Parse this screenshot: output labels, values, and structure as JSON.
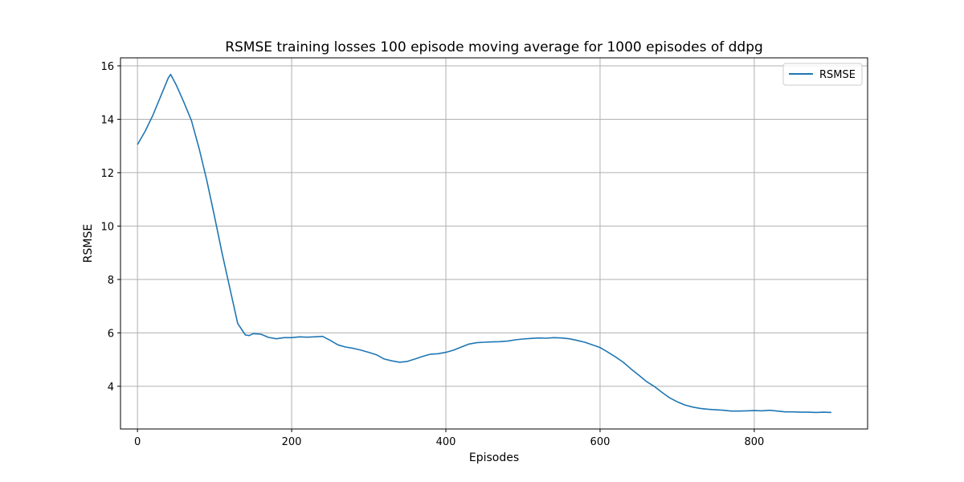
{
  "chart_data": {
    "type": "line",
    "title": "RSMSE training losses 100 episode moving average for 1000 episodes of ddpg",
    "xlabel": "Episodes",
    "ylabel": "RSMSE",
    "xlim": [
      -22,
      947
    ],
    "ylim": [
      2.4,
      16.3
    ],
    "xticks": [
      0,
      200,
      400,
      600,
      800
    ],
    "yticks": [
      4,
      6,
      8,
      10,
      12,
      14,
      16
    ],
    "grid": true,
    "legend_position": "top-right",
    "series": [
      {
        "name": "RSMSE",
        "color": "#1f77b4",
        "x": [
          0,
          10,
          20,
          30,
          40,
          43,
          50,
          60,
          70,
          80,
          90,
          100,
          110,
          120,
          130,
          140,
          145,
          150,
          160,
          170,
          180,
          190,
          200,
          210,
          220,
          230,
          240,
          250,
          260,
          270,
          280,
          290,
          300,
          310,
          320,
          330,
          340,
          350,
          360,
          370,
          380,
          390,
          400,
          410,
          420,
          430,
          440,
          450,
          460,
          470,
          480,
          490,
          500,
          510,
          520,
          530,
          540,
          550,
          560,
          570,
          580,
          590,
          600,
          610,
          620,
          630,
          640,
          650,
          660,
          670,
          680,
          690,
          700,
          710,
          720,
          730,
          740,
          750,
          760,
          770,
          780,
          790,
          800,
          810,
          820,
          830,
          840,
          850,
          860,
          870,
          880,
          890,
          900
        ],
        "y": [
          13.05,
          13.55,
          14.15,
          14.85,
          15.55,
          15.68,
          15.3,
          14.65,
          13.95,
          12.9,
          11.7,
          10.35,
          8.95,
          7.65,
          6.35,
          5.92,
          5.9,
          5.97,
          5.95,
          5.83,
          5.78,
          5.82,
          5.82,
          5.85,
          5.84,
          5.85,
          5.87,
          5.72,
          5.55,
          5.47,
          5.42,
          5.35,
          5.27,
          5.18,
          5.02,
          4.95,
          4.9,
          4.93,
          5.02,
          5.12,
          5.2,
          5.22,
          5.27,
          5.35,
          5.47,
          5.58,
          5.63,
          5.65,
          5.66,
          5.67,
          5.69,
          5.74,
          5.77,
          5.79,
          5.81,
          5.8,
          5.82,
          5.81,
          5.78,
          5.72,
          5.65,
          5.55,
          5.45,
          5.28,
          5.1,
          4.9,
          4.65,
          4.42,
          4.18,
          4.0,
          3.78,
          3.57,
          3.42,
          3.3,
          3.22,
          3.17,
          3.14,
          3.12,
          3.1,
          3.07,
          3.07,
          3.08,
          3.09,
          3.08,
          3.1,
          3.07,
          3.04,
          3.04,
          3.03,
          3.03,
          3.02,
          3.03,
          3.02
        ]
      }
    ]
  }
}
